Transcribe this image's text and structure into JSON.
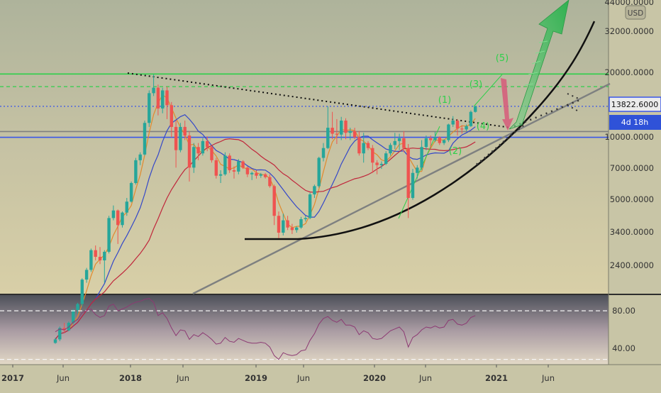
{
  "chart_data": {
    "type": "candlestick",
    "x_ticks": [
      "2017",
      "Jun",
      "2018",
      "Jun",
      "2019",
      "Jun",
      "2020",
      "Jun",
      "2021",
      "Jun"
    ],
    "price_axis": {
      "scale": "log",
      "currency_label": "USD",
      "ticks": [
        "44000.0000",
        "32000.0000",
        "20000.0000",
        "10000.0000",
        "7000.0000",
        "5000.0000",
        "3400.0000",
        "2400.0000"
      ]
    },
    "current_price_label": "13822.6000",
    "countdown_label": "4d 18h",
    "levels": [
      {
        "price": 19800,
        "style": "solid",
        "color": "#2ed04a"
      },
      {
        "price": 17200,
        "style": "dashed",
        "color": "#2ed04a"
      },
      {
        "price": 13822.6,
        "style": "dotted",
        "color": "#3a57e8"
      },
      {
        "price": 10450,
        "style": "solid",
        "color": "#808080"
      },
      {
        "price": 9800,
        "style": "solid",
        "color": "#3a57e8"
      }
    ],
    "wave_labels": [
      "(1)",
      "(2)",
      "(3)",
      "(4)",
      "(5)"
    ],
    "candles": [
      [
        1000,
        1060,
        990,
        1040
      ],
      [
        1040,
        1200,
        1020,
        1180
      ],
      [
        1180,
        1250,
        1120,
        1150
      ],
      [
        1150,
        1270,
        1140,
        1250
      ],
      [
        1250,
        1460,
        1230,
        1440
      ],
      [
        1440,
        1560,
        1380,
        1540
      ],
      [
        1540,
        2050,
        1500,
        2020
      ],
      [
        2020,
        2300,
        1950,
        2250
      ],
      [
        2250,
        2850,
        2200,
        2800
      ],
      [
        2800,
        2950,
        2500,
        2600
      ],
      [
        2600,
        2900,
        2400,
        2500
      ],
      [
        2500,
        2800,
        1950,
        2750
      ],
      [
        2750,
        4100,
        2700,
        4000
      ],
      [
        4000,
        4600,
        3900,
        4350
      ],
      [
        4350,
        4400,
        3000,
        3700
      ],
      [
        3700,
        4300,
        3600,
        4250
      ],
      [
        4250,
        5000,
        4100,
        4800
      ],
      [
        4800,
        6000,
        4750,
        5900
      ],
      [
        5900,
        7800,
        5800,
        7600
      ],
      [
        7600,
        8300,
        7200,
        8100
      ],
      [
        8100,
        11800,
        8000,
        11500
      ],
      [
        11500,
        16500,
        11000,
        16000
      ],
      [
        16000,
        19700,
        15500,
        17000
      ],
      [
        17000,
        17600,
        12500,
        13500
      ],
      [
        13500,
        17000,
        12800,
        16500
      ],
      [
        16500,
        17200,
        12000,
        14000
      ],
      [
        14000,
        14500,
        9800,
        11000
      ],
      [
        11000,
        11800,
        7000,
        8500
      ],
      [
        8500,
        11500,
        8300,
        11000
      ],
      [
        11000,
        11800,
        9500,
        10000
      ],
      [
        10000,
        10500,
        6000,
        7000
      ],
      [
        7000,
        9200,
        6600,
        8800
      ],
      [
        8800,
        9200,
        7600,
        8200
      ],
      [
        8200,
        9700,
        8000,
        9400
      ],
      [
        9400,
        9900,
        8400,
        8800
      ],
      [
        8800,
        8900,
        7400,
        7600
      ],
      [
        7600,
        7800,
        6200,
        6400
      ],
      [
        6400,
        6800,
        5900,
        6500
      ],
      [
        6500,
        8300,
        6400,
        8000
      ],
      [
        8000,
        8200,
        6600,
        6800
      ],
      [
        6800,
        7100,
        6200,
        6700
      ],
      [
        6700,
        7700,
        6500,
        7500
      ],
      [
        7500,
        7600,
        6900,
        7000
      ],
      [
        7000,
        7100,
        6300,
        6500
      ],
      [
        6500,
        6700,
        6100,
        6600
      ],
      [
        6600,
        6800,
        6200,
        6400
      ],
      [
        6400,
        6600,
        6250,
        6500
      ],
      [
        6500,
        6600,
        6200,
        6300
      ],
      [
        6300,
        6500,
        5600,
        5700
      ],
      [
        5700,
        5800,
        3700,
        4100
      ],
      [
        4100,
        4300,
        3200,
        3400
      ],
      [
        3400,
        4200,
        3300,
        3900
      ],
      [
        3900,
        4100,
        3500,
        3600
      ],
      [
        3600,
        3750,
        3350,
        3500
      ],
      [
        3500,
        3650,
        3400,
        3600
      ],
      [
        3600,
        4050,
        3550,
        3950
      ],
      [
        3950,
        4100,
        3850,
        4000
      ],
      [
        4000,
        5300,
        3950,
        5200
      ],
      [
        5200,
        5800,
        5000,
        5700
      ],
      [
        5700,
        7900,
        5600,
        7800
      ],
      [
        7800,
        9200,
        7500,
        8700
      ],
      [
        8700,
        13800,
        8600,
        10900
      ],
      [
        10900,
        13000,
        9600,
        10200
      ],
      [
        10200,
        12000,
        9100,
        10100
      ],
      [
        10100,
        12300,
        9500,
        11800
      ],
      [
        11800,
        12100,
        9600,
        10300
      ],
      [
        10300,
        10900,
        9500,
        10500
      ],
      [
        10500,
        10900,
        9600,
        9800
      ],
      [
        9800,
        10500,
        8000,
        8200
      ],
      [
        8200,
        10300,
        7400,
        9200
      ],
      [
        9200,
        9400,
        8500,
        8700
      ],
      [
        8700,
        9000,
        6600,
        7400
      ],
      [
        7400,
        7600,
        6500,
        7200
      ],
      [
        7200,
        7500,
        6900,
        7300
      ],
      [
        7300,
        8400,
        7200,
        8200
      ],
      [
        8200,
        9200,
        8000,
        9000
      ],
      [
        9000,
        10300,
        8600,
        9400
      ],
      [
        9400,
        10200,
        8500,
        9700
      ],
      [
        9700,
        10500,
        8300,
        8700
      ],
      [
        8700,
        9100,
        4000,
        5000
      ],
      [
        5000,
        6900,
        4900,
        6600
      ],
      [
        6600,
        7200,
        6200,
        7000
      ],
      [
        7000,
        9500,
        6800,
        8800
      ],
      [
        8800,
        10000,
        8500,
        9700
      ],
      [
        9700,
        10000,
        8700,
        9500
      ],
      [
        9500,
        10400,
        9300,
        9800
      ],
      [
        9800,
        9900,
        9000,
        9200
      ],
      [
        9200,
        9600,
        9000,
        9500
      ],
      [
        9500,
        11400,
        9300,
        11300
      ],
      [
        11300,
        12400,
        11000,
        11800
      ],
      [
        11800,
        12000,
        10000,
        10800
      ],
      [
        10800,
        11200,
        10200,
        10700
      ],
      [
        10700,
        11300,
        10500,
        11100
      ],
      [
        11100,
        13200,
        11000,
        13000
      ],
      [
        13000,
        13900,
        12900,
        13800
      ]
    ],
    "rsi": {
      "upper_band": "80.00",
      "lower_band": "40.00",
      "values": [
        58,
        61,
        60,
        63,
        68,
        71,
        78,
        80,
        82,
        76,
        73,
        75,
        85,
        87,
        80,
        82,
        84,
        87,
        89,
        90,
        92,
        93,
        89,
        75,
        78,
        72,
        62,
        54,
        60,
        59,
        50,
        55,
        53,
        57,
        54,
        50,
        45,
        46,
        52,
        48,
        47,
        51,
        49,
        47,
        46,
        46,
        47,
        46,
        42,
        33,
        29,
        36,
        34,
        33,
        34,
        38,
        39,
        49,
        56,
        66,
        72,
        74,
        70,
        68,
        71,
        65,
        65,
        63,
        55,
        59,
        57,
        51,
        50,
        51,
        55,
        59,
        61,
        63,
        58,
        42,
        52,
        55,
        60,
        63,
        62,
        64,
        62,
        63,
        70,
        71,
        66,
        65,
        67,
        73,
        75
      ]
    }
  }
}
